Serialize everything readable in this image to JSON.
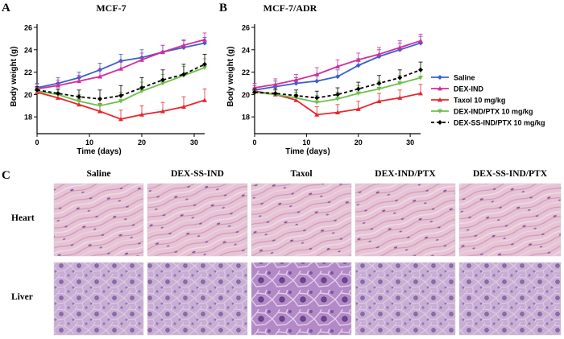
{
  "panel_labels": {
    "a": "A",
    "b": "B",
    "c": "C"
  },
  "colors": {
    "saline": "#3a5fcd",
    "dex_ind": "#d62b9c",
    "taxol": "#e8262d",
    "dex_ind_ptx": "#6cc04a",
    "dex_ss_ind_ptx": "#000000",
    "heart_tissue": "#e9c5d6",
    "liver_tissue": "#c9b0d6"
  },
  "chart_data": [
    {
      "type": "line",
      "title": "MCF-7",
      "xlabel": "Time (days)",
      "ylabel": "Body weight (g)",
      "xlim": [
        0,
        32
      ],
      "ylim": [
        16.5,
        26
      ],
      "xticks": [
        0,
        10,
        20,
        30
      ],
      "yticks": [
        18,
        20,
        22,
        24,
        26
      ],
      "x": [
        0,
        4,
        8,
        12,
        16,
        20,
        24,
        28,
        32
      ],
      "series": [
        {
          "name": "Saline",
          "values": [
            20.6,
            21.0,
            21.5,
            22.2,
            23.0,
            23.3,
            23.8,
            24.2,
            24.6
          ],
          "errors": [
            0.4,
            0.5,
            0.5,
            0.6,
            0.6,
            0.7,
            0.6,
            0.6,
            0.5
          ]
        },
        {
          "name": "DEX-IND",
          "values": [
            20.5,
            20.8,
            21.2,
            21.6,
            22.3,
            23.1,
            23.8,
            24.4,
            24.9
          ],
          "errors": [
            0.4,
            0.5,
            0.5,
            0.6,
            0.6,
            0.6,
            0.6,
            0.5,
            0.6
          ]
        },
        {
          "name": "Taxol 10 mg/kg",
          "values": [
            20.2,
            19.7,
            19.1,
            18.5,
            17.8,
            18.2,
            18.5,
            18.9,
            19.5
          ],
          "errors": [
            0.3,
            0.4,
            0.5,
            0.7,
            0.8,
            0.8,
            0.8,
            0.9,
            1.0
          ]
        },
        {
          "name": "DEX-IND/PTX 10 mg/kg",
          "values": [
            20.3,
            20.0,
            19.4,
            19.0,
            19.4,
            20.3,
            21.0,
            21.7,
            22.4
          ],
          "errors": [
            0.3,
            0.4,
            0.6,
            0.7,
            0.8,
            0.8,
            0.8,
            0.8,
            0.8
          ]
        },
        {
          "name": "DEX-SS-IND/PTX 10 mg/kg",
          "values": [
            20.4,
            20.1,
            19.8,
            19.6,
            19.9,
            20.6,
            21.3,
            21.8,
            22.7
          ],
          "errors": [
            0.3,
            0.4,
            0.6,
            0.8,
            0.9,
            0.9,
            0.9,
            0.9,
            0.9
          ]
        }
      ]
    },
    {
      "type": "line",
      "title": "MCF-7/ADR",
      "xlabel": "Time (days)",
      "ylabel": "Body weight (g)",
      "xlim": [
        0,
        32
      ],
      "ylim": [
        16.5,
        26
      ],
      "xticks": [
        0,
        10,
        20,
        30
      ],
      "yticks": [
        18,
        20,
        22,
        24,
        26
      ],
      "x": [
        0,
        4,
        8,
        12,
        16,
        20,
        24,
        28,
        32
      ],
      "series": [
        {
          "name": "Saline",
          "values": [
            20.4,
            20.7,
            21.0,
            21.2,
            21.6,
            22.6,
            23.4,
            24.0,
            24.6
          ],
          "errors": [
            0.4,
            0.5,
            0.5,
            0.6,
            0.6,
            0.6,
            0.6,
            0.6,
            0.6
          ]
        },
        {
          "name": "DEX-IND",
          "values": [
            20.6,
            20.9,
            21.3,
            21.8,
            22.5,
            23.1,
            23.6,
            24.2,
            24.8
          ],
          "errors": [
            0.4,
            0.5,
            0.5,
            0.6,
            0.6,
            0.6,
            0.6,
            0.6,
            0.6
          ]
        },
        {
          "name": "Taxol 10 mg/kg",
          "values": [
            20.3,
            20.0,
            19.5,
            18.2,
            18.4,
            18.7,
            19.4,
            19.7,
            20.1
          ],
          "errors": [
            0.3,
            0.4,
            0.5,
            0.7,
            0.7,
            0.7,
            0.7,
            0.7,
            0.8
          ]
        },
        {
          "name": "DEX-IND/PTX 10 mg/kg",
          "values": [
            20.2,
            20.0,
            19.7,
            19.3,
            19.6,
            20.1,
            20.5,
            21.0,
            21.5
          ],
          "errors": [
            0.3,
            0.4,
            0.5,
            0.6,
            0.6,
            0.7,
            0.7,
            0.7,
            0.7
          ]
        },
        {
          "name": "DEX-SS-IND/PTX 10 mg/kg",
          "values": [
            20.2,
            20.1,
            19.9,
            19.7,
            20.0,
            20.5,
            21.0,
            21.5,
            22.2
          ],
          "errors": [
            0.3,
            0.4,
            0.5,
            0.6,
            0.6,
            0.6,
            0.7,
            0.7,
            0.7
          ]
        }
      ]
    }
  ],
  "legend": {
    "placement": "right",
    "entries": [
      "Saline",
      "DEX-IND",
      "Taxol 10 mg/kg",
      "DEX-IND/PTX 10 mg/kg",
      "DEX-SS-IND/PTX 10 mg/kg"
    ]
  },
  "histology": {
    "columns": [
      "Saline",
      "DEX-SS-IND",
      "Taxol",
      "DEX-IND/PTX",
      "DEX-SS-IND/PTX"
    ],
    "rows": [
      "Heart",
      "Liver"
    ]
  }
}
